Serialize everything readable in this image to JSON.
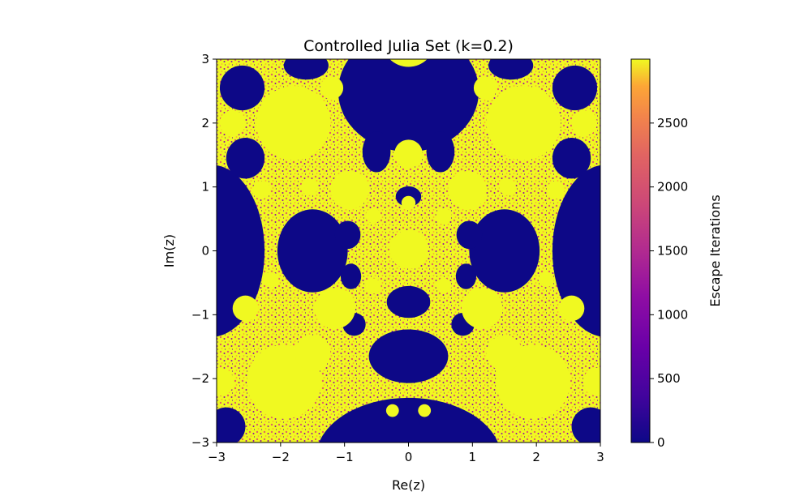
{
  "chart_data": {
    "type": "heatmap",
    "title": "Controlled Julia Set (k=0.2)",
    "xlabel": "Re(z)",
    "ylabel": "Im(z)",
    "xlim": [
      -3,
      3
    ],
    "ylim": [
      -3,
      3
    ],
    "x_ticks": [
      -3,
      -2,
      -1,
      0,
      1,
      2,
      3
    ],
    "y_ticks": [
      -3,
      -2,
      -1,
      0,
      1,
      2,
      3
    ],
    "x_tick_labels": [
      "−3",
      "−2",
      "−1",
      "0",
      "1",
      "2",
      "3"
    ],
    "y_tick_labels": [
      "−3",
      "−2",
      "−1",
      "0",
      "1",
      "2",
      "3"
    ],
    "colormap": "plasma",
    "colorbar": {
      "label": "Escape Iterations",
      "range": [
        0,
        3000
      ],
      "ticks": [
        0,
        500,
        1000,
        1500,
        2000,
        2500
      ],
      "tick_labels": [
        "0",
        "500",
        "1000",
        "1500",
        "2000",
        "2500"
      ]
    },
    "grid": false,
    "colors": {
      "low": "#0d0887",
      "high": "#f0f921"
    }
  }
}
